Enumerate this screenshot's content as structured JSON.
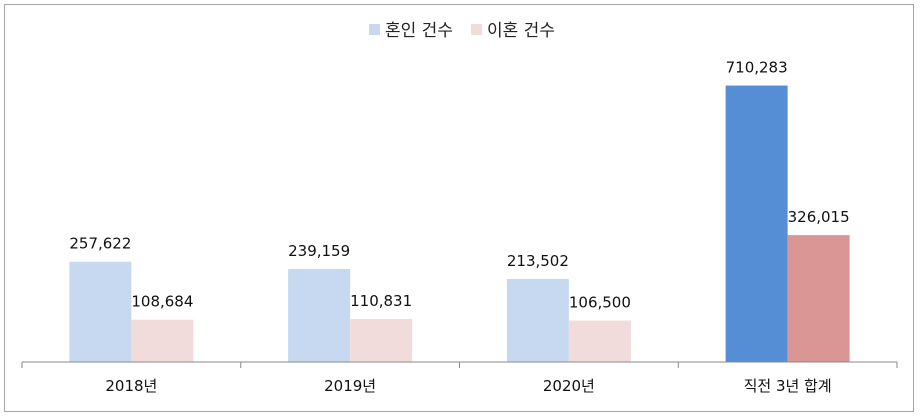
{
  "chart_data": {
    "type": "bar",
    "categories": [
      "2018년",
      "2019년",
      "2020년",
      "직전 3년 합계"
    ],
    "series": [
      {
        "name": "혼인 건수",
        "values": [
          257622,
          239159,
          213502,
          710283
        ],
        "value_labels": [
          "257,622",
          "239,159",
          "213,502",
          "710,283"
        ],
        "colors": [
          "#c6d9f1",
          "#c6d9f1",
          "#c6d9f1",
          "#558ed5"
        ]
      },
      {
        "name": "이혼 건수",
        "values": [
          108684,
          110831,
          106500,
          326015
        ],
        "value_labels": [
          "108,684",
          "110,831",
          "106,500",
          "326,015"
        ],
        "colors": [
          "#f2dcdb",
          "#f2dcdb",
          "#f2dcdb",
          "#d99694"
        ]
      }
    ],
    "legend_colors": [
      "#c6d9f1",
      "#f2dcdb"
    ],
    "legend_position": "top",
    "ylim": [
      0,
      740000
    ],
    "grid": false,
    "axis_color": "#898989",
    "title": "",
    "xlabel": "",
    "ylabel": ""
  }
}
